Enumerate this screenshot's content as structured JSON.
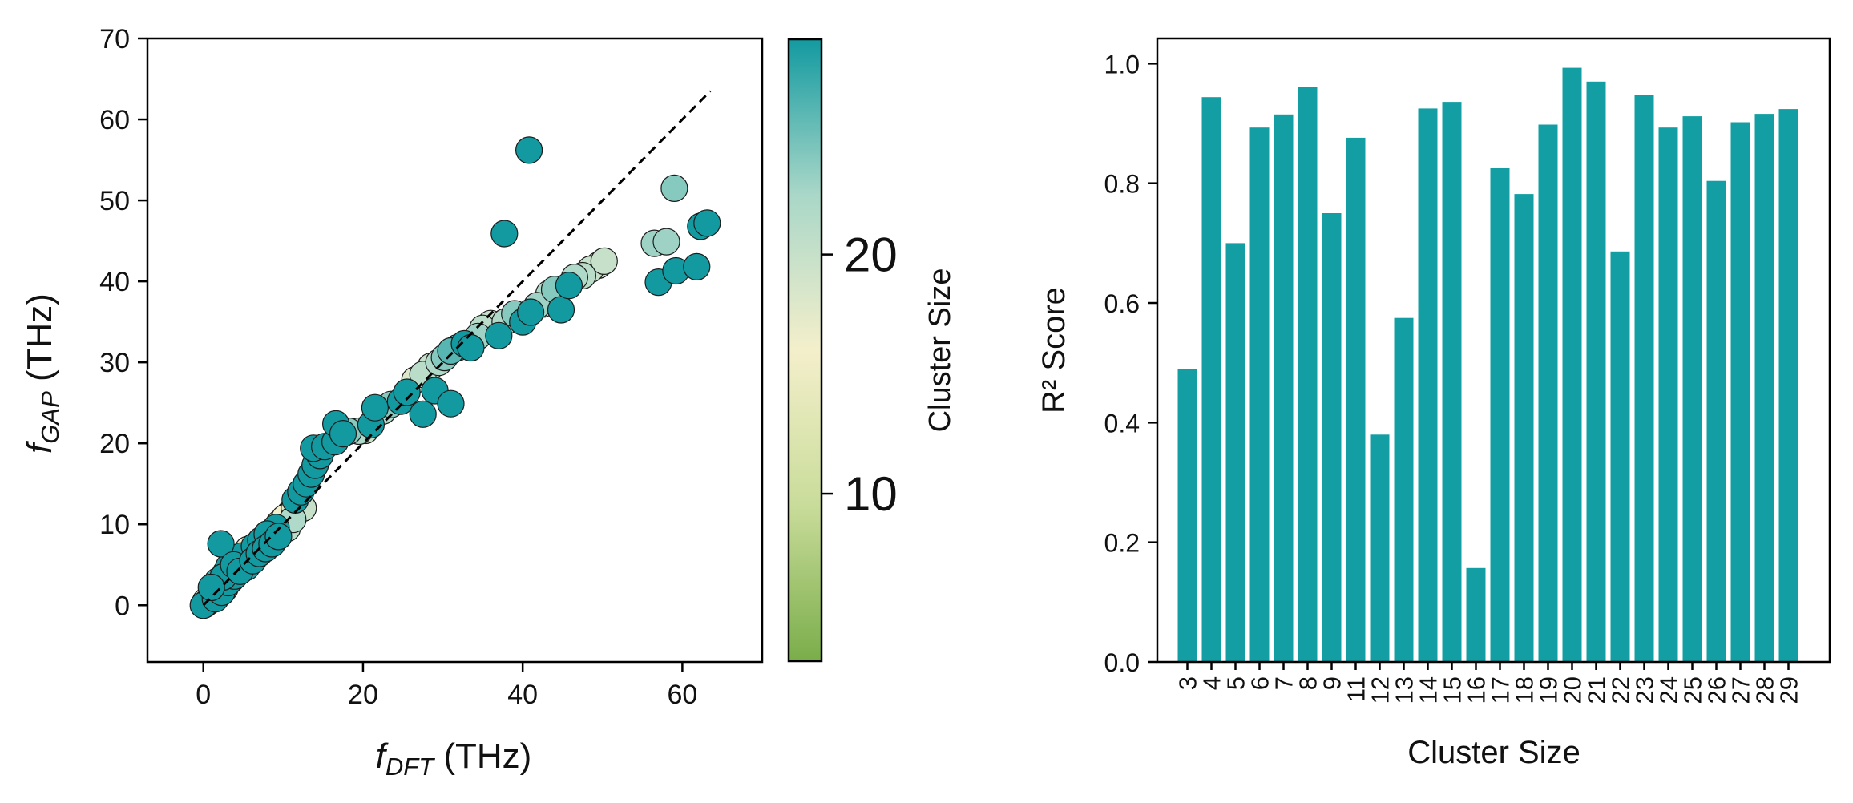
{
  "chart_data": [
    {
      "type": "scatter",
      "title": "",
      "xlabel": {
        "main": "f",
        "sub": "DFT",
        "unit": " (THz)"
      },
      "ylabel": {
        "main": "f",
        "sub": "GAP",
        "unit": " (THz)"
      },
      "xlim": [
        -7,
        70
      ],
      "ylim": [
        -7,
        70
      ],
      "xticks": [
        0,
        20,
        40,
        60
      ],
      "yticks": [
        0,
        10,
        20,
        30,
        40,
        50,
        60,
        70
      ],
      "reference_line": {
        "x": [
          0,
          63.5
        ],
        "y": [
          0,
          63.5
        ],
        "style": "dashed"
      },
      "colorbar": {
        "label": "Cluster Size",
        "range": [
          3,
          29
        ],
        "ticks": [
          10,
          20
        ],
        "colors": [
          "#7aad4a",
          "#c9dc9a",
          "#f4efcb",
          "#a9d7c8",
          "#139aa0"
        ]
      },
      "series": [
        {
          "name": "points",
          "points": [
            [
              0,
              0,
              29
            ],
            [
              0.2,
              0.1,
              28
            ],
            [
              0.4,
              0.3,
              27
            ],
            [
              0.6,
              0.4,
              26
            ],
            [
              0.8,
              0.6,
              25
            ],
            [
              1.0,
              0.8,
              24
            ],
            [
              1.2,
              1.0,
              23
            ],
            [
              1.4,
              1.1,
              22
            ],
            [
              0.3,
              0.5,
              20
            ],
            [
              0.7,
              0.9,
              18
            ],
            [
              1.1,
              1.6,
              16
            ],
            [
              1.6,
              2.0,
              14
            ],
            [
              2.0,
              2.2,
              12
            ],
            [
              2.4,
              2.7,
              10
            ],
            [
              1.5,
              0.8,
              29
            ],
            [
              1.9,
              1.3,
              27
            ],
            [
              2.3,
              1.6,
              29
            ],
            [
              2.7,
              2.1,
              25
            ],
            [
              3.1,
              2.8,
              29
            ],
            [
              3.5,
              3.2,
              27
            ],
            [
              3.9,
              3.6,
              29
            ],
            [
              4.3,
              4.4,
              15
            ],
            [
              4.7,
              5.1,
              13
            ],
            [
              5.1,
              5.3,
              29
            ],
            [
              5.5,
              5.8,
              28
            ],
            [
              5.9,
              6.3,
              29
            ],
            [
              6.3,
              6.5,
              17
            ],
            [
              6.7,
              7.1,
              29
            ],
            [
              7.1,
              7.5,
              12
            ],
            [
              7.5,
              7.9,
              29
            ],
            [
              7.9,
              8.3,
              15
            ],
            [
              8.3,
              8.5,
              29
            ],
            [
              8.7,
              9.0,
              19
            ],
            [
              9.1,
              9.6,
              29
            ],
            [
              9.5,
              10.1,
              13
            ],
            [
              3.2,
              4.8,
              29
            ],
            [
              4.0,
              5.6,
              28
            ],
            [
              4.8,
              6.1,
              29
            ],
            [
              5.6,
              6.9,
              16
            ],
            [
              6.4,
              7.3,
              29
            ],
            [
              7.2,
              8.0,
              29
            ],
            [
              8.0,
              8.8,
              29
            ],
            [
              2.5,
              3.5,
              29
            ],
            [
              2.2,
              7.6,
              29
            ],
            [
              1.0,
              2.2,
              29
            ],
            [
              1.8,
              3.0,
              27
            ],
            [
              2.8,
              4.0,
              24
            ],
            [
              3.8,
              5.0,
              29
            ],
            [
              4.6,
              4.2,
              29
            ],
            [
              5.4,
              4.7,
              28
            ],
            [
              6.2,
              5.5,
              29
            ],
            [
              7.0,
              6.4,
              29
            ],
            [
              7.8,
              7.0,
              29
            ],
            [
              8.6,
              7.6,
              29
            ],
            [
              9.4,
              8.5,
              29
            ],
            [
              10.2,
              10.8,
              16
            ],
            [
              10.8,
              11.3,
              14
            ],
            [
              11.4,
              12.0,
              18
            ],
            [
              12.0,
              12.7,
              15
            ],
            [
              10.5,
              9.5,
              21
            ],
            [
              11.2,
              10.6,
              22
            ],
            [
              12.5,
              12.0,
              20
            ],
            [
              11.5,
              13.0,
              29
            ],
            [
              12.2,
              14.0,
              29
            ],
            [
              12.9,
              15.0,
              29
            ],
            [
              13.5,
              16.2,
              29
            ],
            [
              14.0,
              17.3,
              29
            ],
            [
              14.6,
              18.5,
              29
            ],
            [
              13.8,
              19.4,
              29
            ],
            [
              15.2,
              19.6,
              29
            ],
            [
              16.5,
              20.2,
              29
            ],
            [
              16.6,
              22.4,
              29
            ],
            [
              17.5,
              21.2,
              29
            ],
            [
              18.2,
              21.5,
              24
            ],
            [
              19.5,
              21.5,
              22
            ],
            [
              20.3,
              21.6,
              20
            ],
            [
              21.0,
              22.3,
              29
            ],
            [
              21.5,
              24.4,
              29
            ],
            [
              22.5,
              24.0,
              22
            ],
            [
              23.5,
              24.8,
              24
            ],
            [
              24.7,
              25.2,
              29
            ],
            [
              25.5,
              26.3,
              29
            ],
            [
              26.5,
              27.8,
              18
            ],
            [
              27.5,
              28.5,
              21
            ],
            [
              28.5,
              29.5,
              20
            ],
            [
              27.5,
              23.6,
              29
            ],
            [
              29.0,
              26.5,
              29
            ],
            [
              31.0,
              24.9,
              29
            ],
            [
              29.5,
              30.0,
              22
            ],
            [
              30.2,
              30.6,
              24
            ],
            [
              31.0,
              31.4,
              26
            ],
            [
              31.8,
              31.8,
              24
            ],
            [
              32.7,
              32.3,
              29
            ],
            [
              33.5,
              31.8,
              29
            ],
            [
              34.4,
              33.2,
              23
            ],
            [
              35.0,
              34.2,
              21
            ],
            [
              36.0,
              34.8,
              20
            ],
            [
              37.0,
              33.3,
              29
            ],
            [
              37.8,
              35.0,
              22
            ],
            [
              39.0,
              36.0,
              24
            ],
            [
              40.0,
              35.0,
              29
            ],
            [
              41.0,
              36.2,
              29
            ],
            [
              41.8,
              37.0,
              23
            ],
            [
              42.5,
              37.2,
              22
            ],
            [
              43.3,
              38.5,
              22
            ],
            [
              44.0,
              39.0,
              24
            ],
            [
              44.8,
              36.5,
              29
            ],
            [
              45.8,
              39.5,
              29
            ],
            [
              46.5,
              40.5,
              22
            ],
            [
              47.5,
              40.7,
              21
            ],
            [
              48.5,
              41.5,
              20
            ],
            [
              49.5,
              42.0,
              19
            ],
            [
              50.2,
              42.5,
              20
            ],
            [
              37.7,
              45.9,
              29
            ],
            [
              40.8,
              56.2,
              29
            ],
            [
              56.5,
              44.7,
              23
            ],
            [
              58.0,
              44.9,
              23
            ],
            [
              59.0,
              51.5,
              24
            ],
            [
              57.0,
              39.9,
              29
            ],
            [
              59.2,
              41.3,
              29
            ],
            [
              61.8,
              41.8,
              29
            ],
            [
              62.3,
              46.8,
              29
            ],
            [
              63.1,
              47.2,
              29
            ]
          ]
        }
      ]
    },
    {
      "type": "bar",
      "title": "",
      "xlabel": "Cluster Size",
      "ylabel": "R² Score",
      "ylim": [
        0,
        1.042
      ],
      "yticks": [
        0.0,
        0.2,
        0.4,
        0.6,
        0.8,
        1.0
      ],
      "ytick_labels": [
        "0.0",
        "0.2",
        "0.4",
        "0.6",
        "0.8",
        "1.0"
      ],
      "bar_color": "#139ea3",
      "categories": [
        "3",
        "4",
        "5",
        "6",
        "7",
        "8",
        "9",
        "11",
        "12",
        "13",
        "14",
        "15",
        "16",
        "17",
        "18",
        "19",
        "20",
        "21",
        "22",
        "23",
        "24",
        "25",
        "26",
        "27",
        "28",
        "29"
      ],
      "values": [
        0.49,
        0.944,
        0.7,
        0.893,
        0.915,
        0.961,
        0.75,
        0.876,
        0.38,
        0.575,
        0.925,
        0.936,
        0.157,
        0.825,
        0.782,
        0.898,
        0.993,
        0.97,
        0.686,
        0.948,
        0.893,
        0.912,
        0.804,
        0.902,
        0.916,
        0.924
      ]
    }
  ]
}
